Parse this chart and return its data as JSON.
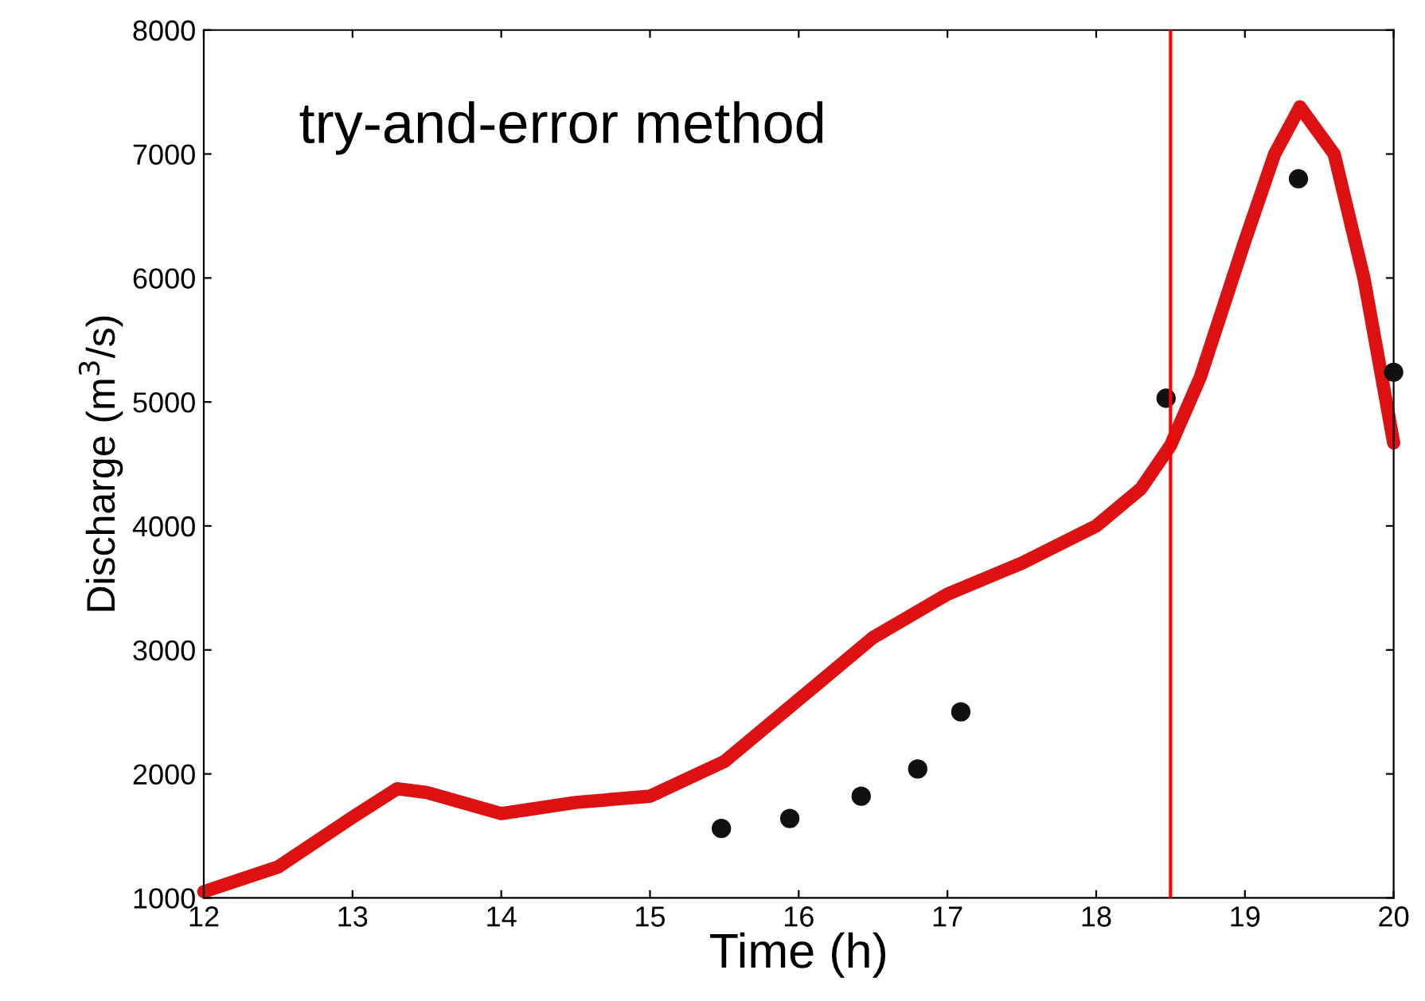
{
  "chart_data": {
    "type": "line",
    "xlabel": "Time (h)",
    "ylabel": "Discharge (m$^{3}$/s)",
    "annotations": [
      "try-and-error method"
    ],
    "xlim": [
      12,
      20
    ],
    "ylim": [
      1000,
      8000
    ],
    "xticks": [
      12,
      13,
      14,
      15,
      16,
      17,
      18,
      19,
      20
    ],
    "yticks": [
      1000,
      2000,
      3000,
      4000,
      5000,
      6000,
      7000,
      8000
    ],
    "grid": false,
    "legend": false,
    "series": [
      {
        "color": "#dd1111",
        "x": [
          12,
          12.5,
          13,
          13.3,
          13.5,
          14,
          14.5,
          15,
          15.5,
          16,
          16.5,
          17,
          17.5,
          18,
          18.3,
          18.5,
          18.7,
          19,
          19.2,
          19.37,
          19.6,
          19.8,
          20
        ],
        "values": [
          1050,
          1250,
          1650,
          1880,
          1850,
          1680,
          1770,
          1820,
          2100,
          2600,
          3100,
          3450,
          3700,
          4000,
          4300,
          4650,
          5200,
          6300,
          7000,
          7380,
          7000,
          6000,
          4670
        ]
      },
      {
        "type": "scatter",
        "color": "#111111",
        "marker": "circle",
        "x": [
          15.48,
          15.94,
          16.42,
          16.8,
          17.09,
          18.47,
          19.36,
          20
        ],
        "values": [
          1560,
          1640,
          1820,
          2040,
          2500,
          5030,
          6800,
          5240
        ]
      }
    ],
    "ref_lines": [
      {
        "axis": "x",
        "value": 18.5,
        "color": "#ff0000"
      }
    ]
  }
}
